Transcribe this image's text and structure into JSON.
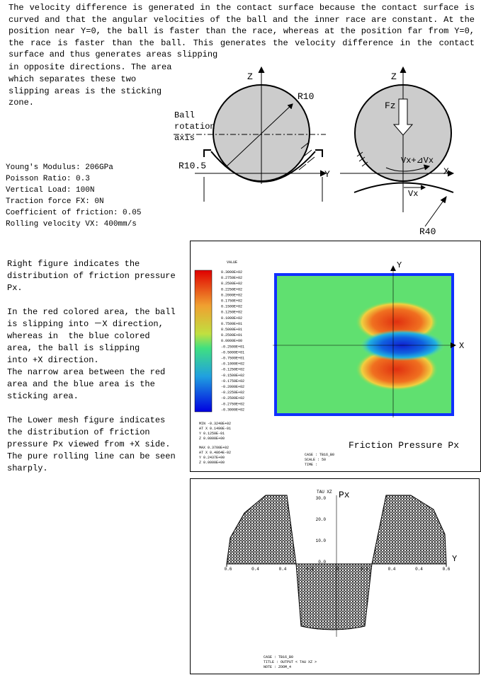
{
  "intro_lines": [
    "The velocity difference is generated in the contact surface because the contact surface is",
    "curved and that the angular velocities of the ball and the inner race are constant. At the",
    "position near Y=0, the ball is faster than the race, whereas at the position far from Y=0,",
    "the race is faster than the ball. This generates the velocity difference in the contact",
    "surface and thus generates areas slipping"
  ],
  "intro_left_lines": [
    "in opposite directions. The area",
    "which separates these two",
    "slipping areas is the sticking",
    "zone."
  ],
  "conditions": [
    "Young's Modulus: 206GPa",
    "Poisson Ratio: 0.3",
    "Vertical Load: 100N",
    "Traction force FX: 0N",
    "Coefficient of friction: 0.05",
    "Rolling velocity VX: 400mm/s"
  ],
  "diagram_left": {
    "z": "Z",
    "r_ball": "R10",
    "axis_label": [
      "Ball",
      "rotation",
      "axis"
    ],
    "r_race": "R10.5",
    "y": "Y"
  },
  "diagram_right": {
    "z": "Z",
    "fz": "Fz",
    "v_ball": "Vx+⊿Vx",
    "x": "X",
    "v_race": "Vx",
    "r_race": "R40"
  },
  "explanation_lines": [
    "Right figure indicates the",
    "distribution of friction pressure",
    "Px.",
    "",
    "In the red colored area, the ball",
    "is slipping into －X direction,",
    "whereas in  the blue colored",
    "area, the ball is slipping",
    "into +X direction.",
    "The narrow area between the red",
    "area and the blue area is the",
    "sticking area.",
    "",
    "The Lower mesh figure indicates",
    "the distribution of friction",
    "pressure Px viewed from +X side.",
    "The pure rolling line can be seen",
    "sharply."
  ],
  "contour": {
    "legend_title": "VALUE",
    "legend_labels": [
      "0.3000E+02",
      "0.2750E+02",
      "0.2500E+02",
      "0.2250E+02",
      "0.2000E+02",
      "0.1750E+02",
      "0.1500E+02",
      "0.1250E+02",
      "0.1000E+02",
      "0.7500E+01",
      "0.5000E+01",
      "0.2500E+01",
      "0.0000E+00",
      "-0.2500E+01",
      "-0.5000E+01",
      "-0.7500E+01",
      "-0.1000E+02",
      "-0.1250E+02",
      "-0.1500E+02",
      "-0.1750E+02",
      "-0.2000E+02",
      "-0.2250E+02",
      "-0.2500E+02",
      "-0.2750E+02",
      "-0.3000E+02"
    ],
    "min_block": [
      "MIN  -0.3248E+02",
      "AT X  0.1490E-01",
      "  Y  0.1250E-01",
      "  Z  0.0000E+00"
    ],
    "max_block": [
      "MAX  0.3700E+02",
      "AT X  0.4864E-02",
      "  Y  0.2437E+00",
      "  Z  0.0000E+00"
    ],
    "case_block": [
      "CASE : TB16_B0",
      "SCALE : 50",
      "TIME :"
    ],
    "y_axis": "Y",
    "x_axis": "X",
    "caption": "Friction Pressure  Px"
  },
  "mesh": {
    "y_title": "TAU XZ",
    "px": "Px",
    "x_axis": "Y",
    "yticks": [
      "30.0",
      "20.0",
      "10.0",
      "0.0"
    ],
    "xticks": [
      "0.6",
      "0.4",
      "0.4",
      "0.2",
      "0",
      "0.2",
      "0.4",
      "0.4",
      "0.6"
    ],
    "case_block": [
      "CASE : TB16_B0",
      "TITLE : OUTPUT < TAU XZ   >",
      "NOTE : ZOOM_4"
    ]
  }
}
